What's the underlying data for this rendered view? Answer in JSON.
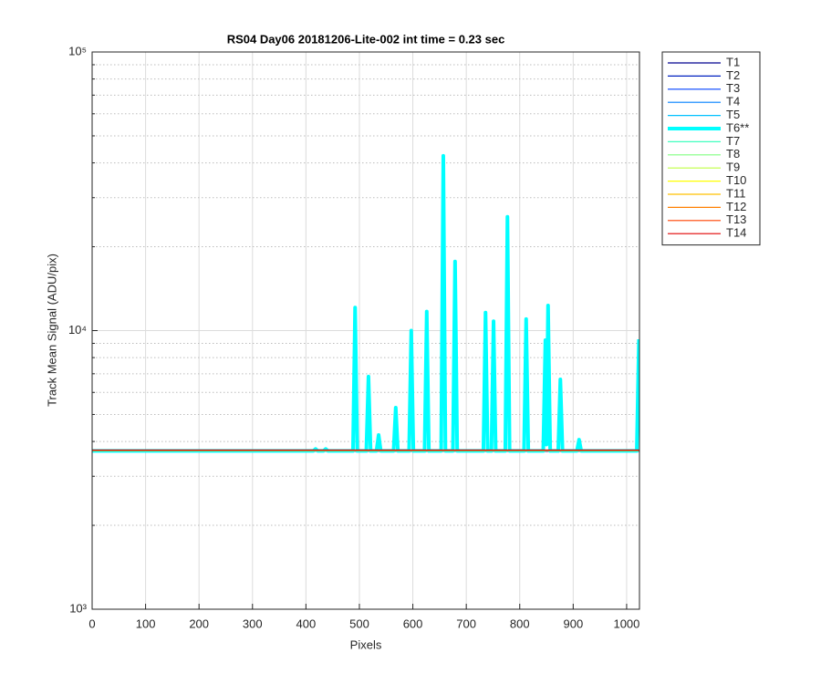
{
  "chart_data": {
    "type": "line",
    "title": "RS04 Day06 20181206-Lite-002 int time = 0.23 sec",
    "xlabel": "Pixels",
    "ylabel": "Track Mean Signal (ADU/pix)",
    "xlim": [
      0,
      1024
    ],
    "xticks": [
      0,
      100,
      200,
      300,
      400,
      500,
      600,
      700,
      800,
      900,
      1000
    ],
    "ylim": [
      1000,
      100000
    ],
    "ylog": true,
    "yticks": [
      {
        "value": 1000,
        "label": "10³"
      },
      {
        "value": 10000,
        "label": "10⁴"
      },
      {
        "value": 100000,
        "label": "10⁵"
      }
    ],
    "yminorticks": [
      2000,
      3000,
      4000,
      5000,
      6000,
      7000,
      8000,
      9000,
      20000,
      30000,
      40000,
      50000,
      60000,
      70000,
      80000,
      90000
    ],
    "grid": true,
    "minor_grid": true,
    "legend": "outside-right",
    "series": [
      {
        "name": "T1",
        "color": "#00008f",
        "linewidth": 1.2,
        "x": [
          0,
          1023
        ],
        "values": [
          3690,
          3690
        ]
      },
      {
        "name": "T2",
        "color": "#0020c0",
        "linewidth": 1.2,
        "x": [
          0,
          1023
        ],
        "values": [
          3695,
          3695
        ]
      },
      {
        "name": "T3",
        "color": "#0040ff",
        "linewidth": 1.2,
        "x": [
          0,
          1023
        ],
        "values": [
          3700,
          3700
        ]
      },
      {
        "name": "T4",
        "color": "#0080ff",
        "linewidth": 1.2,
        "x": [
          0,
          1023
        ],
        "values": [
          3700,
          3700
        ]
      },
      {
        "name": "T5",
        "color": "#00c0ff",
        "linewidth": 1.2,
        "x": [
          0,
          1023
        ],
        "values": [
          3705,
          3705
        ]
      },
      {
        "name": "T6**",
        "color": "#00ffff",
        "linewidth": 4,
        "x": [
          0,
          414,
          418,
          422,
          433,
          437,
          441,
          488,
          492,
          496,
          513,
          517,
          521,
          532,
          536,
          540,
          564,
          568,
          572,
          593,
          597,
          601,
          622,
          626,
          630,
          653,
          657,
          661,
          675,
          679,
          683,
          732,
          736,
          740,
          747,
          751,
          755,
          773,
          777,
          781,
          808,
          812,
          816,
          844,
          848,
          850,
          853,
          857,
          872,
          876,
          880,
          907,
          911,
          915,
          1019,
          1023
        ],
        "values": [
          3700,
          3700,
          3760,
          3700,
          3700,
          3760,
          3700,
          3700,
          12100,
          3700,
          3700,
          6840,
          3700,
          3700,
          4220,
          3700,
          3700,
          5290,
          3700,
          3700,
          10000,
          3700,
          3700,
          11700,
          3700,
          3700,
          42400,
          3700,
          3700,
          17700,
          3700,
          3700,
          11600,
          3700,
          3700,
          10800,
          3700,
          3700,
          25600,
          3700,
          3700,
          11000,
          3700,
          3700,
          9240,
          3900,
          12300,
          3700,
          3700,
          6680,
          3700,
          3700,
          4060,
          3700,
          3700,
          9310
        ]
      },
      {
        "name": "T7",
        "color": "#40ffbf",
        "linewidth": 1.2,
        "x": [
          0,
          1023
        ],
        "values": [
          3705,
          3705
        ]
      },
      {
        "name": "T8",
        "color": "#80ff80",
        "linewidth": 1.2,
        "x": [
          0,
          1023
        ],
        "values": [
          3710,
          3710
        ]
      },
      {
        "name": "T9",
        "color": "#bfff40",
        "linewidth": 1.2,
        "x": [
          0,
          1023
        ],
        "values": [
          3710,
          3710
        ]
      },
      {
        "name": "T10",
        "color": "#ffff00",
        "linewidth": 1.2,
        "x": [
          0,
          1023
        ],
        "values": [
          3715,
          3715
        ]
      },
      {
        "name": "T11",
        "color": "#ffc000",
        "linewidth": 1.2,
        "x": [
          0,
          1023
        ],
        "values": [
          3715,
          3715
        ]
      },
      {
        "name": "T12",
        "color": "#ff8000",
        "linewidth": 1.2,
        "x": [
          0,
          1023
        ],
        "values": [
          3720,
          3720
        ]
      },
      {
        "name": "T13",
        "color": "#ff4000",
        "linewidth": 1.2,
        "x": [
          0,
          1023
        ],
        "values": [
          3720,
          3720
        ]
      },
      {
        "name": "T14",
        "color": "#e00000",
        "linewidth": 1.2,
        "x": [
          0,
          1023
        ],
        "values": [
          3725,
          3725
        ]
      }
    ]
  }
}
